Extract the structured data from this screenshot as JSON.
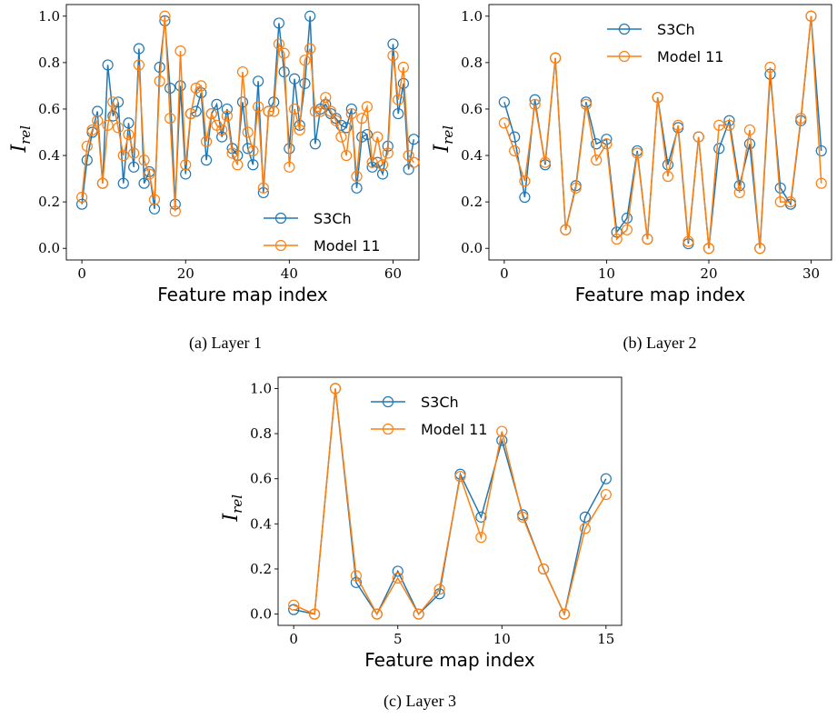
{
  "colors": {
    "s3ch": "#1f77b4",
    "model11": "#ff7f0e"
  },
  "chart_data": [
    {
      "type": "line",
      "caption": "(a) Layer 1",
      "xlabel": "Feature map index",
      "ylabel": "I",
      "ylabel_sub": "rel",
      "xlim": [
        -3,
        65
      ],
      "ylim": [
        -0.05,
        1.05
      ],
      "xticks": [
        0,
        20,
        40,
        60
      ],
      "yticks": [
        0.0,
        0.2,
        0.4,
        0.6,
        0.8,
        1.0
      ],
      "legend": "lower-right",
      "series": [
        {
          "name": "S3Ch",
          "values": [
            0.19,
            0.38,
            0.5,
            0.59,
            0.28,
            0.79,
            0.57,
            0.63,
            0.28,
            0.54,
            0.35,
            0.86,
            0.28,
            0.33,
            0.17,
            0.78,
            0.98,
            0.69,
            0.19,
            0.7,
            0.32,
            0.58,
            0.59,
            0.67,
            0.38,
            0.58,
            0.62,
            0.48,
            0.6,
            0.43,
            0.4,
            0.63,
            0.43,
            0.36,
            0.72,
            0.24,
            0.59,
            0.63,
            0.97,
            0.76,
            0.43,
            0.73,
            0.53,
            0.71,
            1.0,
            0.45,
            0.6,
            0.62,
            0.58,
            0.56,
            0.53,
            0.52,
            0.6,
            0.26,
            0.48,
            0.49,
            0.35,
            0.37,
            0.32,
            0.44,
            0.88,
            0.58,
            0.71,
            0.34,
            0.47
          ]
        },
        {
          "name": "Model 11",
          "values": [
            0.22,
            0.44,
            0.51,
            0.55,
            0.28,
            0.53,
            0.63,
            0.52,
            0.4,
            0.49,
            0.41,
            0.79,
            0.38,
            0.32,
            0.21,
            0.72,
            1.0,
            0.56,
            0.16,
            0.85,
            0.36,
            0.58,
            0.69,
            0.7,
            0.46,
            0.58,
            0.53,
            0.51,
            0.57,
            0.41,
            0.36,
            0.76,
            0.5,
            0.42,
            0.61,
            0.26,
            0.59,
            0.59,
            0.88,
            0.84,
            0.35,
            0.6,
            0.51,
            0.81,
            0.86,
            0.59,
            0.59,
            0.65,
            0.59,
            0.55,
            0.48,
            0.4,
            0.58,
            0.31,
            0.56,
            0.61,
            0.37,
            0.48,
            0.36,
            0.41,
            0.83,
            0.64,
            0.78,
            0.4,
            0.37
          ]
        }
      ]
    },
    {
      "type": "line",
      "caption": "(b) Layer 2",
      "xlabel": "Feature map index",
      "ylabel": "I",
      "ylabel_sub": "rel",
      "xlim": [
        -1.5,
        32
      ],
      "ylim": [
        -0.05,
        1.05
      ],
      "xticks": [
        0,
        10,
        20,
        30
      ],
      "yticks": [
        0.0,
        0.2,
        0.4,
        0.6,
        0.8,
        1.0
      ],
      "legend": "top-center",
      "series": [
        {
          "name": "S3Ch",
          "values": [
            0.63,
            0.48,
            0.22,
            0.64,
            0.36,
            0.82,
            0.08,
            0.27,
            0.63,
            0.45,
            0.47,
            0.07,
            0.13,
            0.42,
            0.04,
            0.65,
            0.36,
            0.52,
            0.02,
            0.48,
            0.0,
            0.43,
            0.55,
            0.27,
            0.45,
            0.0,
            0.75,
            0.26,
            0.19,
            0.55,
            1.0,
            0.42
          ]
        },
        {
          "name": "Model 11",
          "values": [
            0.54,
            0.42,
            0.29,
            0.62,
            0.37,
            0.82,
            0.08,
            0.26,
            0.62,
            0.38,
            0.45,
            0.04,
            0.08,
            0.41,
            0.04,
            0.65,
            0.31,
            0.53,
            0.03,
            0.48,
            0.0,
            0.53,
            0.53,
            0.24,
            0.51,
            0.0,
            0.78,
            0.2,
            0.2,
            0.56,
            1.0,
            0.28
          ]
        }
      ]
    },
    {
      "type": "line",
      "caption": "(c) Layer 3",
      "xlabel": "Feature map index",
      "ylabel": "I",
      "ylabel_sub": "rel",
      "xlim": [
        -0.75,
        15.75
      ],
      "ylim": [
        -0.05,
        1.05
      ],
      "xticks": [
        0,
        5,
        10,
        15
      ],
      "yticks": [
        0.0,
        0.2,
        0.4,
        0.6,
        0.8,
        1.0
      ],
      "legend": "top-center",
      "series": [
        {
          "name": "S3Ch",
          "values": [
            0.02,
            0.0,
            1.0,
            0.14,
            0.0,
            0.19,
            0.0,
            0.09,
            0.62,
            0.43,
            0.77,
            0.44,
            0.2,
            0.0,
            0.43,
            0.6
          ]
        },
        {
          "name": "Model 11",
          "values": [
            0.04,
            0.0,
            1.0,
            0.17,
            0.0,
            0.16,
            0.0,
            0.11,
            0.61,
            0.34,
            0.81,
            0.43,
            0.2,
            0.0,
            0.38,
            0.53
          ]
        }
      ]
    }
  ]
}
